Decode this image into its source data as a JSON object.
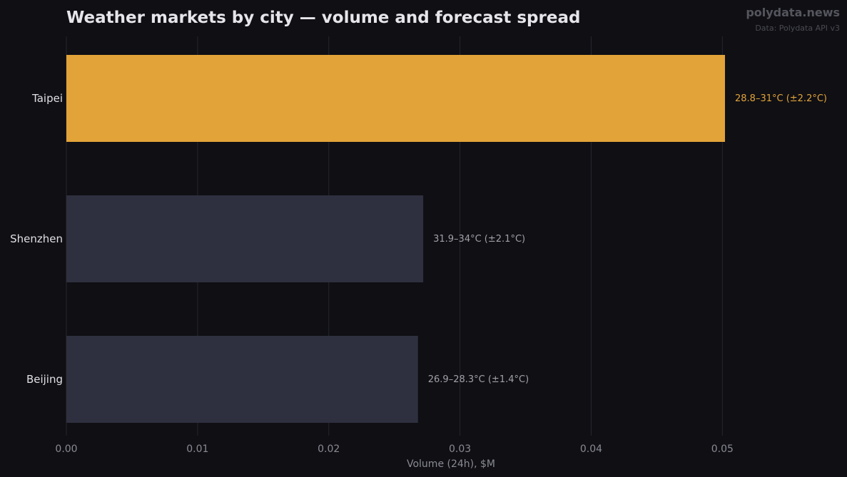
{
  "header": {
    "brand": "polydata.news",
    "source": "Data: Polydata API v3"
  },
  "colors": {
    "background": "#0f0f14",
    "highlight_bar": "#e2a338",
    "default_bar": "#2f303f",
    "grid": "#262630",
    "title": "#e6e6ea",
    "category_label": "#e0e0e4",
    "tick_label": "#8a8a94",
    "annotation_default": "#a0a0a8",
    "brand": "#55555e",
    "source": "#4a4a52"
  },
  "chart_data": {
    "type": "bar",
    "orientation": "horizontal",
    "title": "Weather markets by city — volume and forecast spread",
    "xlabel": "Volume (24h), $M",
    "ylabel": "",
    "xlim": [
      0,
      0.0595
    ],
    "xticks": [
      0.0,
      0.01,
      0.02,
      0.03,
      0.04,
      0.05
    ],
    "xtick_labels": [
      "0.00",
      "0.01",
      "0.02",
      "0.03",
      "0.04",
      "0.05"
    ],
    "grid": "vertical",
    "categories": [
      "Taipei",
      "Shenzhen",
      "Beijing"
    ],
    "values": [
      0.0502,
      0.0272,
      0.0268
    ],
    "annotations": [
      "28.8–31°C (±2.2°C)",
      "31.9–34°C (±2.1°C)",
      "26.9–28.3°C (±1.4°C)"
    ],
    "highlight": [
      true,
      false,
      false
    ]
  }
}
